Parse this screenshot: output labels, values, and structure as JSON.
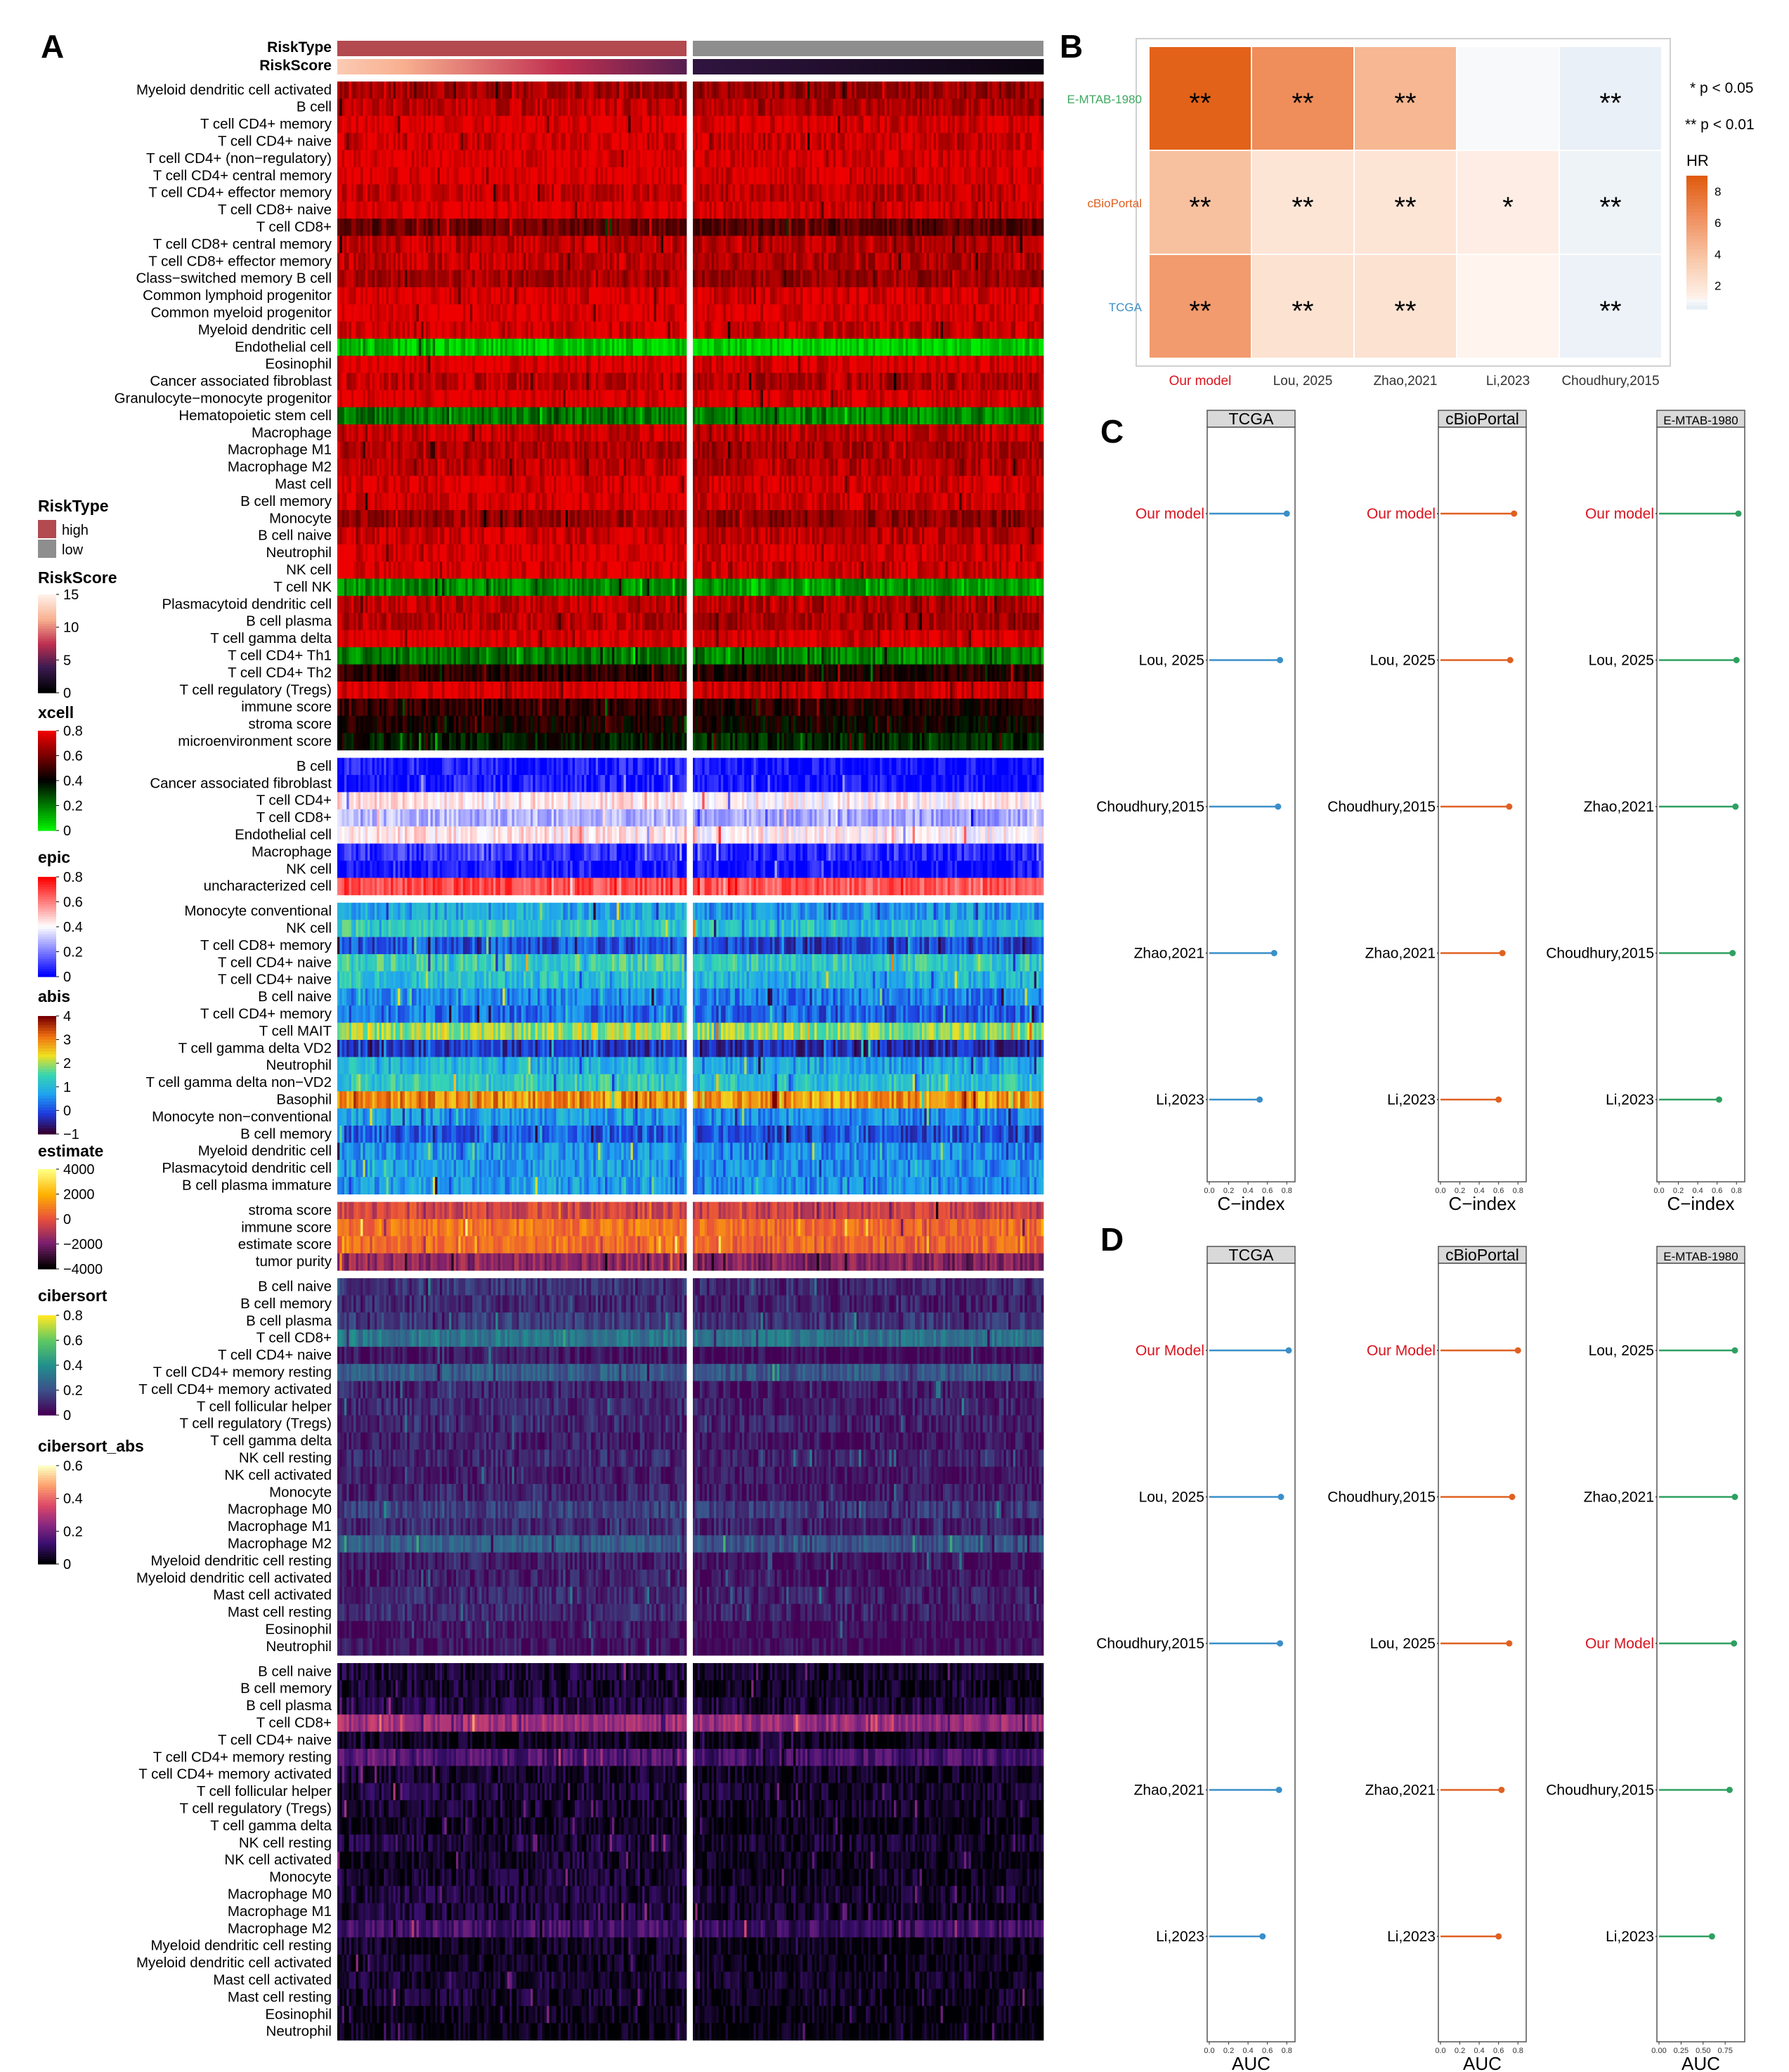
{
  "panel_labels": [
    "A",
    "B",
    "C",
    "D"
  ],
  "chart_data": [
    {
      "panel": "A",
      "type": "heatmap",
      "annotation_rows": [
        {
          "label": "RiskType",
          "high_color": "#B24A50",
          "low_color": "#8E8E8E"
        },
        {
          "label": "RiskScore"
        }
      ],
      "column_groups": [
        "high",
        "low"
      ],
      "blocks": [
        {
          "method": "xcell",
          "colors": [
            "#00EE00",
            "#000000",
            "#EE0000"
          ],
          "rows": [
            "Myeloid dendritic cell activated",
            "B cell",
            "T cell CD4+ memory",
            "T cell CD4+ naive",
            "T cell CD4+ (non−regulatory)",
            "T cell CD4+ central memory",
            "T cell CD4+ effector memory",
            "T cell CD8+ naive",
            "T cell CD8+",
            "T cell CD8+ central memory",
            "T cell CD8+ effector memory",
            "Class−switched memory B cell",
            "Common lymphoid progenitor",
            "Common myeloid progenitor",
            "Myeloid dendritic cell",
            "Endothelial cell",
            "Eosinophil",
            "Cancer associated fibroblast",
            "Granulocyte−monocyte progenitor",
            "Hematopoietic stem cell",
            "Macrophage",
            "Macrophage M1",
            "Macrophage M2",
            "Mast cell",
            "B cell memory",
            "Monocyte",
            "B cell naive",
            "Neutrophil",
            "NK cell",
            "T cell NK",
            "Plasmacytoid dendritic cell",
            "B cell plasma",
            "T cell gamma delta",
            "T cell CD4+ Th1",
            "T cell CD4+ Th2",
            "T cell regulatory (Tregs)",
            "immune score",
            "stroma score",
            "microenvironment score"
          ],
          "row_levels": [
            0.85,
            0.9,
            0.98,
            0.96,
            0.98,
            0.98,
            0.92,
            0.98,
            0.72,
            0.9,
            0.9,
            0.85,
            0.97,
            0.98,
            0.95,
            0.08,
            0.98,
            0.9,
            0.98,
            0.25,
            0.92,
            0.88,
            0.9,
            0.96,
            0.96,
            0.82,
            0.92,
            0.97,
            0.96,
            0.2,
            0.9,
            0.88,
            0.98,
            0.25,
            0.6,
            0.96,
            0.6,
            0.55,
            0.45
          ]
        },
        {
          "method": "epic",
          "colors": [
            "#0000FF",
            "#FFFFFF",
            "#FF0000"
          ],
          "rows": [
            "B cell",
            "Cancer associated fibroblast",
            "T cell CD4+",
            "T cell CD8+",
            "Endothelial cell",
            "Macrophage",
            "NK cell",
            "uncharacterized cell"
          ],
          "row_levels": [
            0.05,
            0.05,
            0.55,
            0.35,
            0.55,
            0.1,
            0.05,
            0.85
          ]
        },
        {
          "method": "abis",
          "colors": [
            "#330033",
            "#1E3CE0",
            "#1FA3F0",
            "#36D6B0",
            "#F0E020",
            "#F07010",
            "#7A0000"
          ],
          "rows": [
            "Monocyte conventional",
            "NK cell",
            "T cell CD8+ memory",
            "T cell CD4+ naive",
            "T cell CD4+ naive",
            "B cell naive",
            "T cell CD4+ memory",
            "T cell MAIT",
            "T cell gamma delta VD2",
            "Neutrophil",
            "T cell gamma delta non−VD2",
            "Basophil",
            "Monocyte non−conventional",
            "B cell memory",
            "Myeloid dendritic cell",
            "Plasmacytoid dendritic cell",
            "B cell plasma immature"
          ],
          "row_levels": [
            0.35,
            0.45,
            0.2,
            0.48,
            0.42,
            0.3,
            0.25,
            0.6,
            0.15,
            0.38,
            0.45,
            0.8,
            0.33,
            0.22,
            0.33,
            0.33,
            0.33
          ]
        },
        {
          "method": "estimate",
          "colors": [
            "#000000",
            "#7A1E6E",
            "#E8503C",
            "#FFB000",
            "#FFFF80"
          ],
          "rows": [
            "stroma score",
            "immune score",
            "estimate score",
            "tumor purity"
          ],
          "row_levels": [
            0.45,
            0.6,
            0.58,
            0.3
          ]
        },
        {
          "method": "cibersort",
          "colors": [
            "#440154",
            "#3B528B",
            "#21908C",
            "#5DC863",
            "#FDE725"
          ],
          "rows": [
            "B cell naive",
            "B cell memory",
            "B cell plasma",
            "T cell CD8+",
            "T cell CD4+ naive",
            "T cell CD4+ memory resting",
            "T cell CD4+ memory activated",
            "T cell follicular helper",
            "T cell regulatory (Tregs)",
            "T cell gamma delta",
            "NK cell resting",
            "NK cell activated",
            "Monocyte",
            "Macrophage M0",
            "Macrophage M1",
            "Macrophage M2",
            "Myeloid dendritic cell resting",
            "Myeloid dendritic cell activated",
            "Mast cell activated",
            "Mast cell resting",
            "Eosinophil",
            "Neutrophil"
          ],
          "row_levels": [
            0.15,
            0.12,
            0.18,
            0.4,
            0.05,
            0.3,
            0.1,
            0.12,
            0.12,
            0.08,
            0.12,
            0.08,
            0.1,
            0.2,
            0.12,
            0.3,
            0.08,
            0.08,
            0.12,
            0.12,
            0.05,
            0.05
          ]
        },
        {
          "method": "cibersort_abs",
          "colors": [
            "#000004",
            "#3B0F70",
            "#8C2981",
            "#DE4968",
            "#FE9F6D",
            "#FCFDBF"
          ],
          "rows": [
            "B cell naive",
            "B cell memory",
            "B cell plasma",
            "T cell CD8+",
            "T cell CD4+ naive",
            "T cell CD4+ memory resting",
            "T cell CD4+ memory activated",
            "T cell follicular helper",
            "T cell regulatory (Tregs)",
            "T cell gamma delta",
            "NK cell resting",
            "NK cell activated",
            "Monocyte",
            "Macrophage M0",
            "Macrophage M1",
            "Macrophage M2",
            "Myeloid dendritic cell resting",
            "Myeloid dendritic cell activated",
            "Mast cell activated",
            "Mast cell resting",
            "Eosinophil",
            "Neutrophil"
          ],
          "row_levels": [
            0.1,
            0.08,
            0.12,
            0.45,
            0.05,
            0.25,
            0.08,
            0.1,
            0.08,
            0.05,
            0.1,
            0.06,
            0.08,
            0.1,
            0.1,
            0.22,
            0.05,
            0.05,
            0.08,
            0.08,
            0.04,
            0.03
          ]
        }
      ],
      "legends": [
        {
          "title": "RiskType",
          "entries": [
            "high",
            "low"
          ]
        },
        {
          "title": "RiskScore",
          "ticks": [
            "15",
            "10",
            "5",
            "0"
          ]
        },
        {
          "title": "xcell",
          "ticks": [
            "0.8",
            "0.6",
            "0.4",
            "0.2",
            "0"
          ]
        },
        {
          "title": "epic",
          "ticks": [
            "0.8",
            "0.6",
            "0.4",
            "0.2",
            "0"
          ]
        },
        {
          "title": "abis",
          "ticks": [
            "4",
            "3",
            "2",
            "1",
            "0",
            "−1"
          ]
        },
        {
          "title": "estimate",
          "ticks": [
            "4000",
            "2000",
            "0",
            "−2000",
            "−4000"
          ]
        },
        {
          "title": "cibersort",
          "ticks": [
            "0.8",
            "0.6",
            "0.4",
            "0.2",
            "0"
          ]
        },
        {
          "title": "cibersort_abs",
          "ticks": [
            "0.6",
            "0.4",
            "0.2",
            "0"
          ]
        }
      ]
    },
    {
      "panel": "B",
      "type": "heatmap",
      "x_labels": [
        "Our model",
        "Lou, 2025",
        "Zhao,2021",
        "Li,2023",
        "Choudhury,2015"
      ],
      "y_labels": [
        "E-MTAB-1980",
        "cBioPortal",
        "TCGA"
      ],
      "y_label_colors": [
        "#3FA860",
        "#E06020",
        "#3A8FC8"
      ],
      "values": [
        [
          8.7,
          6.5,
          4.5,
          0.95,
          0.6
        ],
        [
          4.0,
          1.9,
          1.9,
          1.4,
          0.7
        ],
        [
          5.8,
          2.1,
          2.1,
          1.0,
          0.65
        ]
      ],
      "annotations": [
        [
          "**",
          "**",
          "**",
          "",
          "**"
        ],
        [
          "**",
          "**",
          "**",
          "*",
          "**"
        ],
        [
          "**",
          "**",
          "**",
          "",
          "**"
        ]
      ],
      "legend_title": "HR",
      "legend_ticks": [
        "8",
        "6",
        "4",
        "2"
      ],
      "notes": [
        "* p < 0.05",
        "** p < 0.01"
      ]
    },
    {
      "panel": "C",
      "type": "scatter",
      "xlabel": "C−index",
      "tick_labels": [
        "0.0",
        "0.2",
        "0.4",
        "0.6",
        "0.8"
      ],
      "facets": [
        {
          "title": "TCGA",
          "color": "#3A8FC8",
          "rows": [
            "Our model",
            "Lou, 2025",
            "Choudhury,2015",
            "Zhao,2021",
            "Li,2023"
          ],
          "values": [
            0.8,
            0.73,
            0.71,
            0.67,
            0.52
          ]
        },
        {
          "title": "cBioPortal",
          "color": "#E06020",
          "rows": [
            "Our model",
            "Lou, 2025",
            "Choudhury,2015",
            "Zhao,2021",
            "Li,2023"
          ],
          "values": [
            0.76,
            0.72,
            0.71,
            0.64,
            0.6
          ]
        },
        {
          "title": "E-MTAB-1980",
          "color": "#2EA060",
          "rows": [
            "Our model",
            "Lou, 2025",
            "Zhao,2021",
            "Choudhury,2015",
            "Li,2023"
          ],
          "values": [
            0.82,
            0.8,
            0.79,
            0.76,
            0.62
          ]
        }
      ]
    },
    {
      "panel": "D",
      "type": "scatter",
      "xlabel": "AUC",
      "facets": [
        {
          "title": "TCGA",
          "color": "#3A8FC8",
          "tick_labels": [
            "0.0",
            "0.2",
            "0.4",
            "0.6",
            "0.8"
          ],
          "rows": [
            "Our Model",
            "Lou, 2025",
            "Choudhury,2015",
            "Zhao,2021",
            "Li,2023"
          ],
          "values": [
            0.82,
            0.74,
            0.73,
            0.72,
            0.55
          ]
        },
        {
          "title": "cBioPortal",
          "color": "#E06020",
          "tick_labels": [
            "0.0",
            "0.2",
            "0.4",
            "0.6",
            "0.8"
          ],
          "rows": [
            "Our Model",
            "Choudhury,2015",
            "Lou, 2025",
            "Zhao,2021",
            "Li,2023"
          ],
          "values": [
            0.8,
            0.74,
            0.71,
            0.63,
            0.6
          ]
        },
        {
          "title": "E-MTAB-1980",
          "color": "#2EA060",
          "tick_labels": [
            "0.00",
            "0.25",
            "0.50",
            "0.75"
          ],
          "rows": [
            "Lou, 2025",
            "Zhao,2021",
            "Our Model",
            "Choudhury,2015",
            "Li,2023"
          ],
          "values": [
            0.86,
            0.86,
            0.85,
            0.8,
            0.6
          ]
        }
      ],
      "highlight_label": "Our Model",
      "highlight_color": "#D9141E"
    }
  ]
}
